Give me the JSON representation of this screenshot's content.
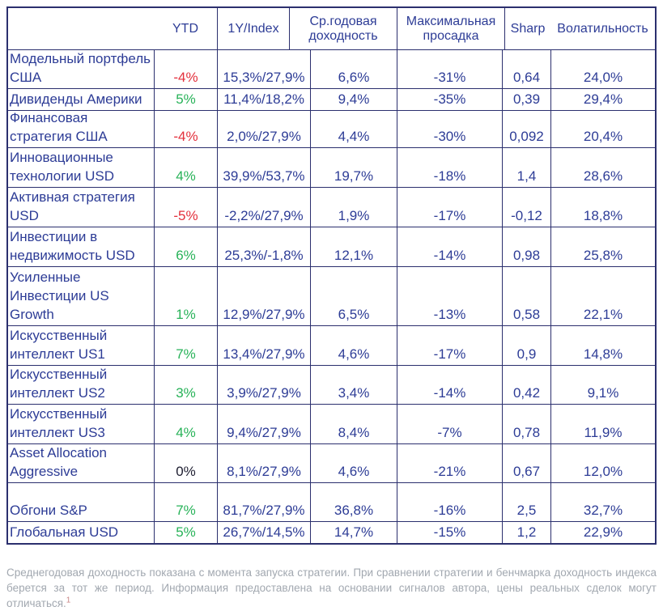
{
  "chart_data": {
    "type": "table",
    "title": "",
    "columns": [
      {
        "key": "strategy",
        "label": ""
      },
      {
        "key": "ytd",
        "label": "YTD"
      },
      {
        "key": "y1_index",
        "label": "1Y/Index"
      },
      {
        "key": "avg_annual_return",
        "label": "Ср.годовая доходность"
      },
      {
        "key": "max_drawdown",
        "label": "Максимальная просадка"
      },
      {
        "key": "sharp",
        "label": "Sharp"
      },
      {
        "key": "volatility",
        "label": "Волатильность"
      }
    ],
    "rows": [
      {
        "strategy": "Модельный портфель США",
        "ytd": "-4%",
        "ytd_sentiment": "negative",
        "y1_index": "15,3%/27,9%",
        "avg_annual_return": "6,6%",
        "max_drawdown": "-31%",
        "sharp": "0,64",
        "volatility": "24,0%"
      },
      {
        "strategy": "Дивиденды Америки",
        "ytd": "5%",
        "ytd_sentiment": "positive",
        "y1_index": "11,4%/18,2%",
        "avg_annual_return": "9,4%",
        "max_drawdown": "-35%",
        "sharp": "0,39",
        "volatility": "29,4%"
      },
      {
        "strategy": "Финансовая стратегия США",
        "ytd": "-4%",
        "ytd_sentiment": "negative",
        "y1_index": "2,0%/27,9%",
        "avg_annual_return": "4,4%",
        "max_drawdown": "-30%",
        "sharp": "0,092",
        "volatility": "20,4%"
      },
      {
        "strategy": "Инновационные технологии USD",
        "ytd": "4%",
        "ytd_sentiment": "positive",
        "y1_index": "39,9%/53,7%",
        "avg_annual_return": "19,7%",
        "max_drawdown": "-18%",
        "sharp": "1,4",
        "volatility": "28,6%"
      },
      {
        "strategy": "Активная стратегия USD",
        "ytd": "-5%",
        "ytd_sentiment": "negative",
        "y1_index": "-2,2%/27,9%",
        "avg_annual_return": "1,9%",
        "max_drawdown": "-17%",
        "sharp": "-0,12",
        "volatility": "18,8%"
      },
      {
        "strategy": "Инвестиции в недвижимость USD",
        "ytd": "6%",
        "ytd_sentiment": "positive",
        "y1_index": "25,3%/-1,8%",
        "avg_annual_return": "12,1%",
        "max_drawdown": "-14%",
        "sharp": "0,98",
        "volatility": "25,8%"
      },
      {
        "strategy": "Усиленные Инвестиции US Growth",
        "ytd": "1%",
        "ytd_sentiment": "positive",
        "y1_index": "12,9%/27,9%",
        "avg_annual_return": "6,5%",
        "max_drawdown": "-13%",
        "sharp": "0,58",
        "volatility": "22,1%"
      },
      {
        "strategy": "Искусственный интеллект US1",
        "ytd": "7%",
        "ytd_sentiment": "positive",
        "y1_index": "13,4%/27,9%",
        "avg_annual_return": "4,6%",
        "max_drawdown": "-17%",
        "sharp": "0,9",
        "volatility": "14,8%"
      },
      {
        "strategy": "Искусственный интеллект US2",
        "ytd": "3%",
        "ytd_sentiment": "positive",
        "y1_index": "3,9%/27,9%",
        "avg_annual_return": "3,4%",
        "max_drawdown": "-14%",
        "sharp": "0,42",
        "volatility": "9,1%"
      },
      {
        "strategy": "Искусственный интеллект US3",
        "ytd": "4%",
        "ytd_sentiment": "positive",
        "y1_index": "9,4%/27,9%",
        "avg_annual_return": "8,4%",
        "max_drawdown": "-7%",
        "sharp": "0,78",
        "volatility": "11,9%"
      },
      {
        "strategy": "Asset Allocation Aggressive",
        "ytd": "0%",
        "ytd_sentiment": "neutral",
        "y1_index": "8,1%/27,9%",
        "avg_annual_return": "4,6%",
        "max_drawdown": "-21%",
        "sharp": "0,67",
        "volatility": "12,0%"
      },
      {
        "strategy": "Обгони S&P",
        "ytd": "7%",
        "ytd_sentiment": "positive",
        "y1_index": "81,7%/27,9%",
        "avg_annual_return": "36,8%",
        "max_drawdown": "-16%",
        "sharp": "2,5",
        "volatility": "32,7%"
      },
      {
        "strategy": "Глобальная USD",
        "ytd": "5%",
        "ytd_sentiment": "positive",
        "y1_index": "26,7%/14,5%",
        "avg_annual_return": "14,7%",
        "max_drawdown": "-15%",
        "sharp": "1,2",
        "volatility": "22,9%"
      }
    ]
  },
  "footnote": {
    "text": "Среднегодовая доходность показана с момента запуска стратегии. При сравнении стратегии и бенчмарка доходность индекса берется за тот же период. Информация предоставлена на основании сигналов автора, цены реальных сделок могут отличаться.",
    "marker": "1"
  },
  "colors": {
    "text_blue": "#2d3c96",
    "border_navy": "#2b2f6e",
    "positive_green": "#27b258",
    "negative_red": "#e3303c",
    "neutral_dark": "#1d1d30",
    "footnote_gray": "#a2a8b0",
    "footnote_marker": "#c98585"
  }
}
